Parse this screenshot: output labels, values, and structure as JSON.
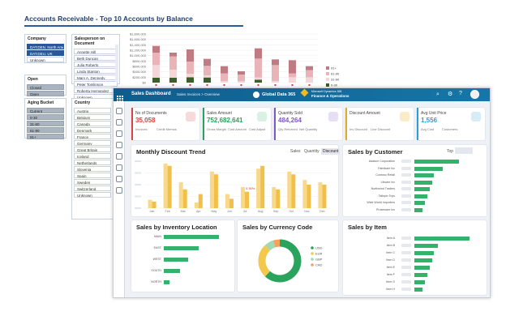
{
  "background_report": {
    "title": "Accounts Receivable - Top 10 Accounts by Balance",
    "slicers": {
      "company": {
        "label": "Company",
        "items": [
          "DAT,DEN, North America Co.",
          "DAT,DEU, UK",
          "Unknown"
        ]
      },
      "salesperson": {
        "label": "Salesperson on Document",
        "items": [
          "Annette Hill",
          "Beth Duncan",
          "Julia Roberts",
          "Linda Stanton",
          "Mary A. Dennedy",
          "Peter Tomlinson",
          "Roberta Hernandez",
          "Unknown"
        ]
      },
      "open": {
        "label": "Open",
        "items": [
          "Closed",
          "Open"
        ]
      },
      "aging": {
        "label": "Aging Bucket",
        "items": [
          "Current",
          "0-30",
          "31-60",
          "61-90",
          "91+"
        ]
      },
      "country": {
        "label": "Country",
        "items": [
          "Austria",
          "Belgium",
          "Canada",
          "Denmark",
          "France",
          "Germany",
          "Great Britain",
          "Iceland",
          "Netherlands",
          "Slovenia",
          "Spain",
          "Sweden",
          "Switzerland",
          "Unknown"
        ]
      }
    },
    "chart_data": {
      "type": "bar",
      "y_ticks": [
        "$1,800,000",
        "$1,600,000",
        "$1,400,000",
        "$1,200,000",
        "$1,000,000",
        "$800,000",
        "$600,000",
        "$400,000",
        "$200,000",
        "$0"
      ],
      "series": [
        {
          "name": "91+",
          "color": "#c07b82",
          "values": [
            250000,
            140000,
            450000,
            260000,
            270000,
            120000,
            380000,
            210000,
            490000,
            150000
          ]
        },
        {
          "name": "61-90",
          "color": "#e8b4b8",
          "values": [
            460000,
            490000,
            450000,
            350000,
            280000,
            250000,
            700000,
            590000,
            140000,
            260000
          ]
        },
        {
          "name": "31-60",
          "color": "#f6d7d9",
          "values": [
            470000,
            300000,
            130000,
            80000,
            60000,
            50000,
            80000,
            60000,
            200000,
            200000
          ]
        },
        {
          "name": "0-30",
          "color": "#3d5e2a",
          "values": [
            180000,
            180000,
            200000,
            190000,
            0,
            0,
            110000,
            0,
            0,
            0
          ]
        }
      ]
    }
  },
  "dashboard": {
    "title": "Sales Dashboard",
    "breadcrumb": "Sales Invoices > Overview",
    "brand": "Global Data 365",
    "product_top": "Microsoft Dynamics 365",
    "product_main": "Finance & Operations",
    "kpis": [
      {
        "title": "No of Documents",
        "value": "35,058",
        "color": "#d64545",
        "sub1": "Invoices",
        "sub1v": "",
        "sub2": "Credit Memos",
        "sub2v": "",
        "icon": "documents-icon",
        "iconbg": "#f7d9d9"
      },
      {
        "title": "Sales Amount",
        "value": "752,682,641",
        "color": "#2aa35d",
        "sub1": "Gross Margin",
        "sub1v": "",
        "sub2": "Cost Amount",
        "sub2v": "",
        "sub3": "Cost Adjust",
        "sub3v": "",
        "icon": "money-icon",
        "iconbg": "#d8f1e2"
      },
      {
        "title": "Quantity Sold",
        "value": "484,264",
        "color": "#7b5bbf",
        "sub1": "Qty Returned",
        "sub1v": "",
        "sub2": "Net Quantity",
        "sub2v": "",
        "icon": "box-icon",
        "iconbg": "#e6def5"
      },
      {
        "title": "Discount Amount",
        "value": "",
        "color": "#e2a92a",
        "sub1": "Inv Discount",
        "sub1v": "",
        "sub2": "Line Discount",
        "sub2v": "",
        "icon": "discount-icon",
        "iconbg": "#fbecc8"
      },
      {
        "title": "Avg Unit Price",
        "value": "1,556",
        "color": "#2a9fd6",
        "sub1": "Avg Cost",
        "sub1v": "",
        "sub2": "Customers",
        "sub2v": "",
        "icon": "tag-icon",
        "iconbg": "#d6edf8"
      }
    ],
    "monthly_discount": {
      "title": "Monthly Discount Trend",
      "tabs": [
        "Sales",
        "Quantity",
        "Discount"
      ],
      "annotation": "0.30%",
      "chart_data": {
        "type": "bar",
        "categories": [
          "Jan",
          "Feb",
          "Mar",
          "Apr",
          "May",
          "Jun",
          "Jul",
          "Aug",
          "Sep",
          "Oct",
          "Nov",
          "Dec"
        ],
        "series": [
          {
            "name": "Prior",
            "color": "#f8d98a",
            "values": [
              0.18,
              0.95,
              0.55,
              0.12,
              0.78,
              0.3,
              0.45,
              0.84,
              0.45,
              0.78,
              0.6,
              0.55
            ]
          },
          {
            "name": "Current",
            "color": "#f2bf4a",
            "values": [
              0.14,
              0.9,
              0.4,
              0.3,
              0.72,
              0.2,
              0.35,
              0.9,
              0.4,
              0.72,
              0.5,
              0.5
            ]
          }
        ]
      }
    },
    "sales_by_customer": {
      "title": "Sales by Customer",
      "filter": "Top",
      "rows": [
        {
          "name": "Adatum Corporation",
          "value": 0.95
        },
        {
          "name": "Fabrikam Inc",
          "value": 0.6
        },
        {
          "name": "Contoso Retail",
          "value": 0.42
        },
        {
          "name": "Litware Inc",
          "value": 0.38
        },
        {
          "name": "Northwind Traders",
          "value": 0.33
        },
        {
          "name": "Tailspin Toys",
          "value": 0.28
        },
        {
          "name": "Wide World Importers",
          "value": 0.23
        },
        {
          "name": "Proseware Inc",
          "value": 0.18
        }
      ]
    },
    "sales_by_location": {
      "title": "Sales by Inventory Location",
      "rows": [
        {
          "name": "MAIN",
          "value": 0.95
        },
        {
          "name": "EAST",
          "value": 0.6
        },
        {
          "name": "WEST",
          "value": 0.42
        },
        {
          "name": "SOUTH",
          "value": 0.28
        },
        {
          "name": "NORTH",
          "value": 0.1
        }
      ]
    },
    "sales_by_currency": {
      "title": "Sales by Currency Code",
      "chart_data": {
        "type": "pie",
        "slices": [
          {
            "name": "USD",
            "value": 62,
            "color": "#2aa35d"
          },
          {
            "name": "EUR",
            "value": 26,
            "color": "#f2c94c"
          },
          {
            "name": "GBP",
            "value": 7,
            "color": "#9fd9b5"
          },
          {
            "name": "CAD",
            "value": 5,
            "color": "#f5a25d"
          }
        ]
      }
    },
    "sales_by_item": {
      "title": "Sales by Item",
      "rows": [
        {
          "name": "Item A",
          "value": 0.95
        },
        {
          "name": "Item B",
          "value": 0.4
        },
        {
          "name": "Item C",
          "value": 0.33
        },
        {
          "name": "Item D",
          "value": 0.3
        },
        {
          "name": "Item E",
          "value": 0.26
        },
        {
          "name": "Item F",
          "value": 0.22
        },
        {
          "name": "Item G",
          "value": 0.18
        },
        {
          "name": "Item H",
          "value": 0.14
        }
      ]
    }
  }
}
